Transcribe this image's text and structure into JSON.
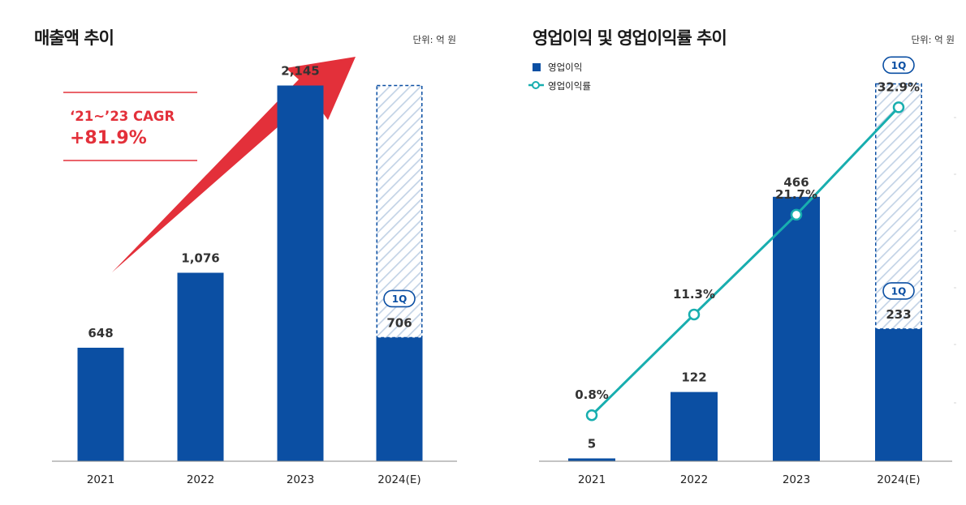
{
  "colors": {
    "bar": "#0b4fa3",
    "estimate_hatch": "#c3d3e6",
    "estimate_border": "#0b4fa3",
    "line": "#18aeaf",
    "cagr": "#e3303a"
  },
  "left_panel": {
    "title": "매출액 추이",
    "unit": "단위: 억 원",
    "cagr": {
      "label": "‘21~’23 CAGR",
      "value": "+81.9%"
    }
  },
  "right_panel": {
    "title": "영업이익 및 영업이익률 추이",
    "unit": "단위: 억 원",
    "legend": {
      "bar": "영업이익",
      "line": "영업이익률"
    }
  },
  "chart_data": [
    {
      "type": "bar",
      "title": "매출액 추이",
      "unit": "단위: 억 원",
      "categories": [
        "2021",
        "2022",
        "2023",
        "2024(E)"
      ],
      "values": [
        648,
        1076,
        2145,
        706
      ],
      "value_labels": [
        "648",
        "1,076",
        "2,145",
        "706"
      ],
      "estimate": {
        "category": "2024(E)",
        "actual_label": "1Q",
        "full_year_estimate": 2145
      },
      "annotation": {
        "label": "‘21~’23 CAGR",
        "value": "+81.9%"
      },
      "ylim": [
        0,
        2300
      ]
    },
    {
      "type": "bar+line",
      "title": "영업이익 및 영업이익률 추이",
      "unit": "단위: 억 원",
      "categories": [
        "2021",
        "2022",
        "2023",
        "2024(E)"
      ],
      "series": [
        {
          "name": "영업이익",
          "type": "bar",
          "values": [
            5,
            122,
            466,
            233
          ],
          "value_labels": [
            "5",
            "122",
            "466",
            "233"
          ]
        },
        {
          "name": "영업이익률",
          "type": "line",
          "values": [
            0.8,
            11.3,
            21.7,
            32.9
          ],
          "value_labels": [
            "0.8%",
            "11.3%",
            "21.7%",
            "32.9%"
          ]
        }
      ],
      "estimate": {
        "category": "2024(E)",
        "actual_label": "1Q",
        "full_year_estimate": 665,
        "line_label_tag": "1Q"
      },
      "ylim_bar": [
        0,
        710
      ],
      "ylim_line": [
        -4,
        38
      ]
    }
  ]
}
